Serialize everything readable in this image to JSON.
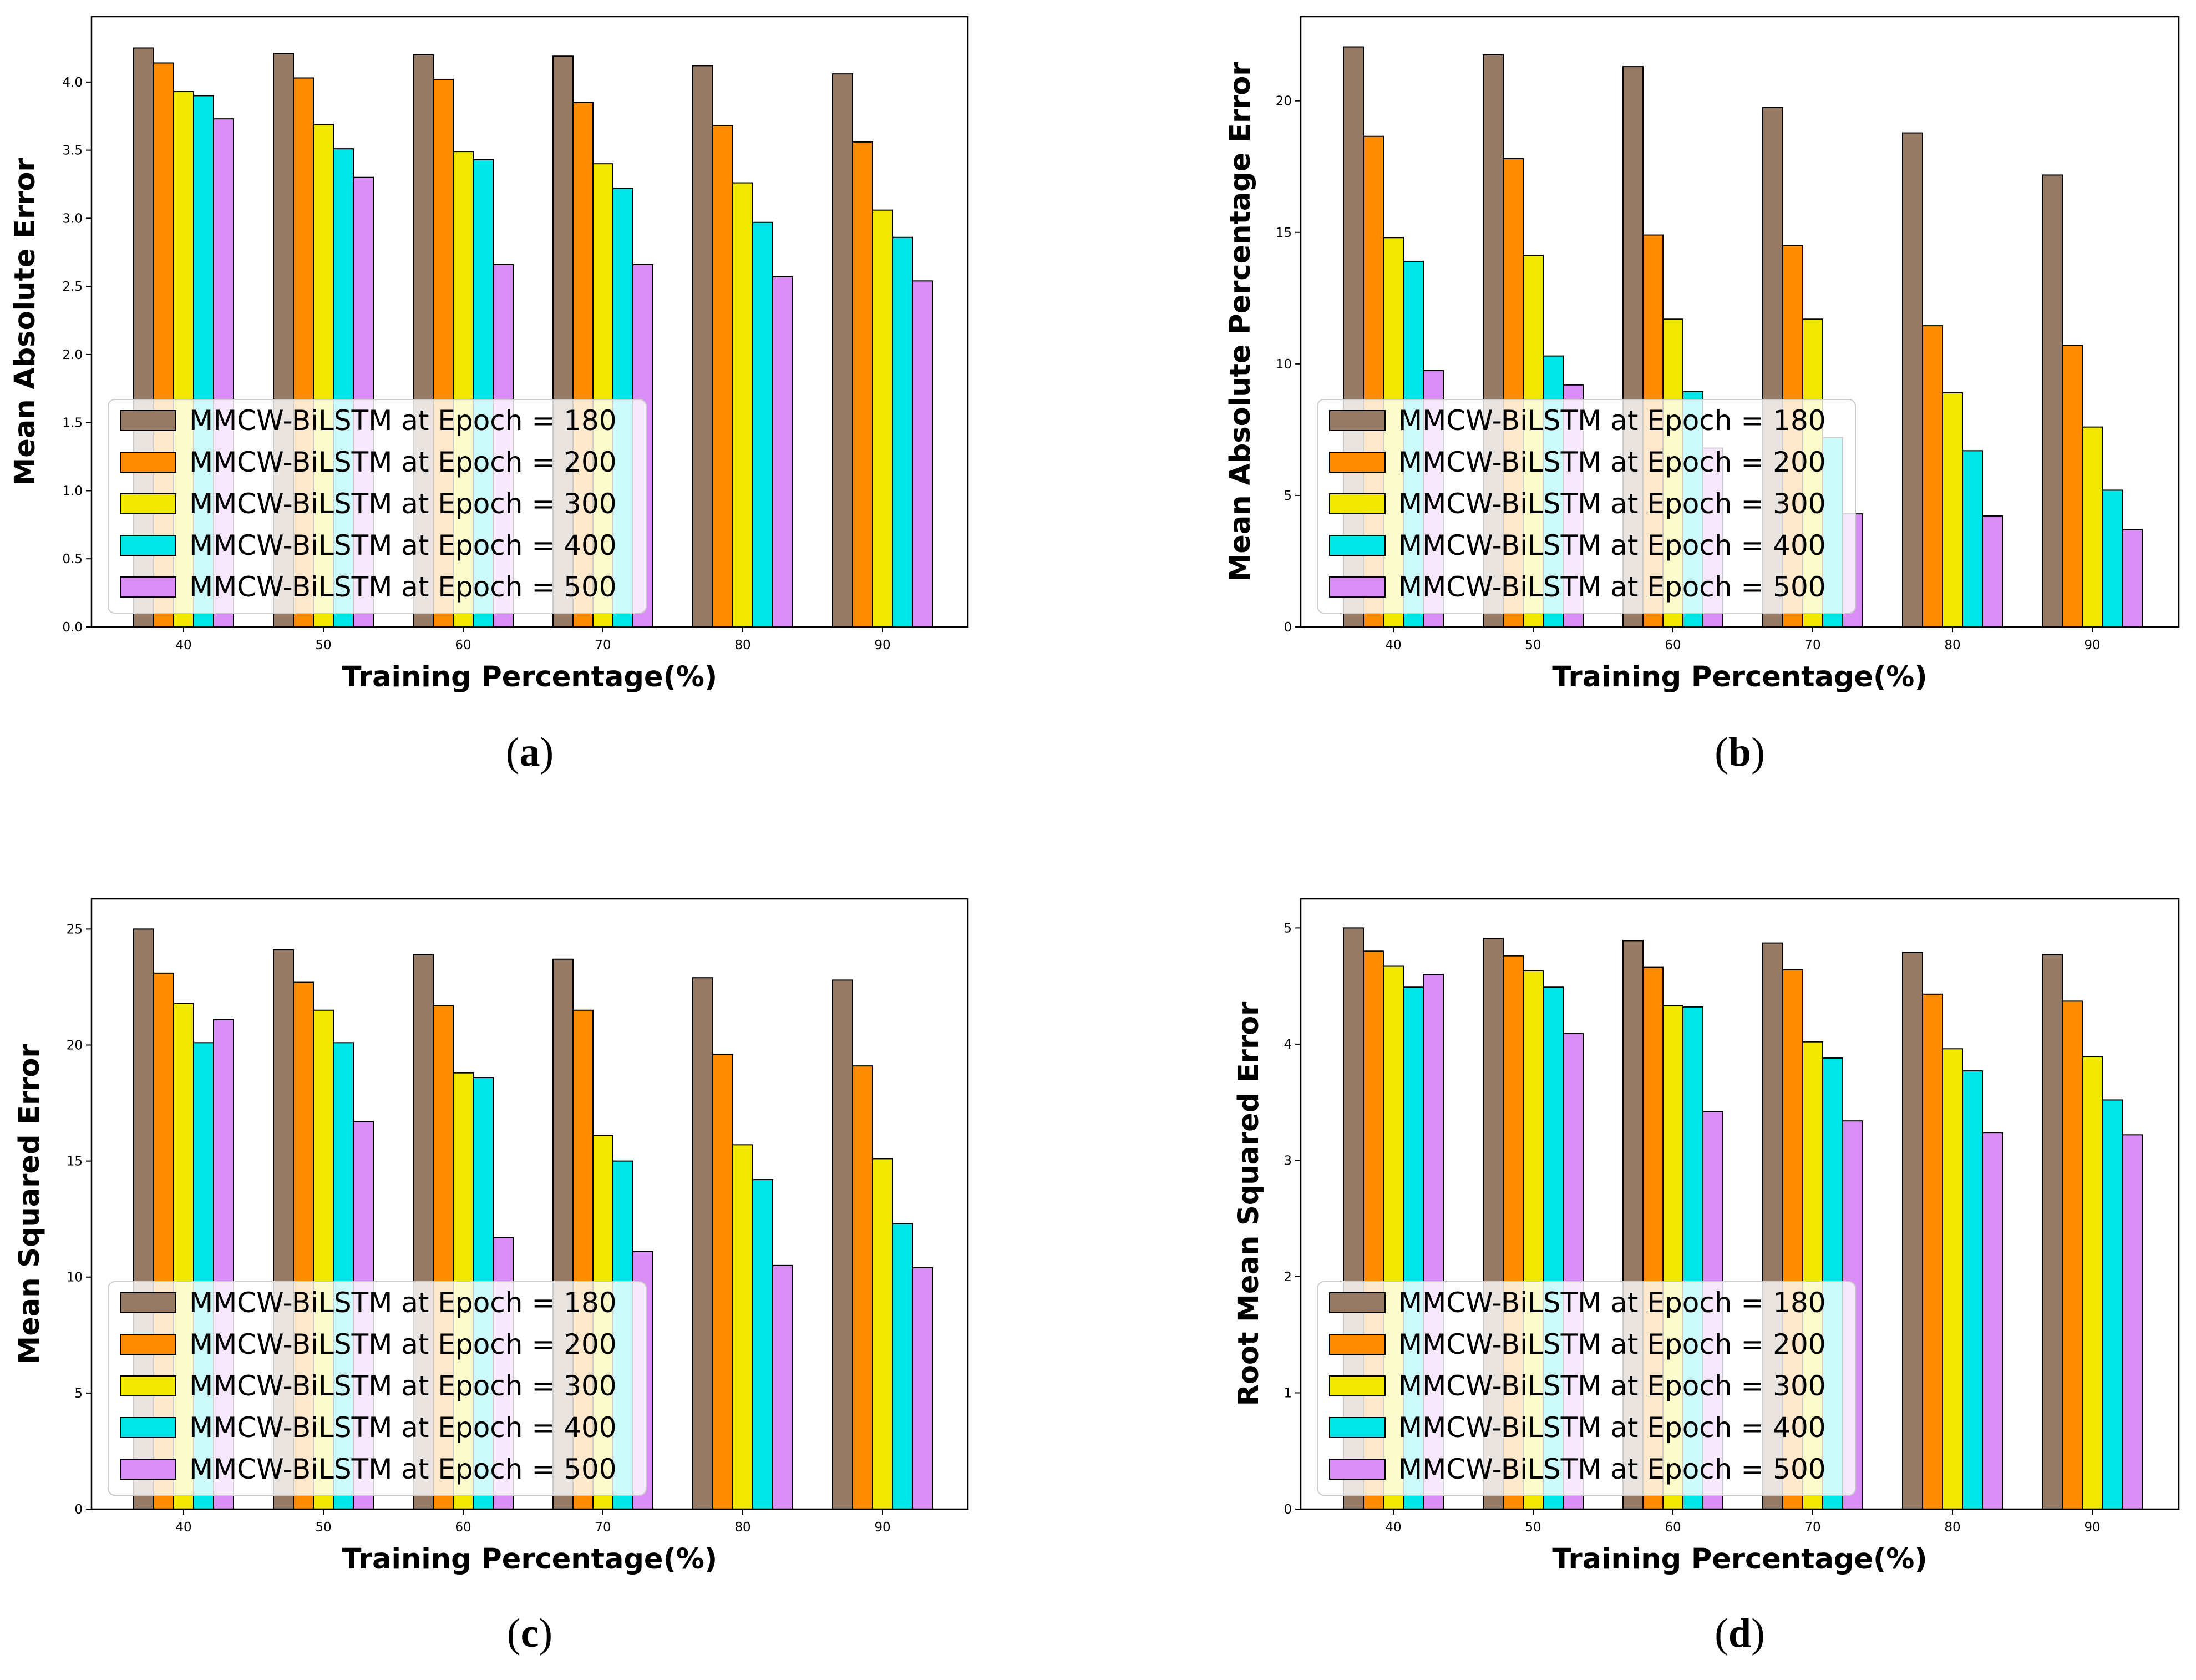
{
  "chart_data": [
    {
      "type": "bar",
      "caption": "a",
      "categories": [
        "40",
        "50",
        "60",
        "70",
        "80",
        "90"
      ],
      "series": [
        {
          "name": "MMCW-BiLSTM at Epoch = 180",
          "values": [
            4.25,
            4.21,
            4.2,
            4.19,
            4.12,
            4.06
          ]
        },
        {
          "name": "MMCW-BiLSTM at Epoch = 200",
          "values": [
            4.14,
            4.03,
            4.02,
            3.85,
            3.68,
            3.56
          ]
        },
        {
          "name": "MMCW-BiLSTM at Epoch = 300",
          "values": [
            3.93,
            3.69,
            3.49,
            3.4,
            3.26,
            3.06
          ]
        },
        {
          "name": "MMCW-BiLSTM at Epoch = 400",
          "values": [
            3.9,
            3.51,
            3.43,
            3.22,
            2.97,
            2.86
          ]
        },
        {
          "name": "MMCW-BiLSTM at Epoch = 500",
          "values": [
            3.73,
            3.3,
            2.66,
            2.66,
            2.57,
            2.54
          ]
        }
      ],
      "xlabel": "Training Percentage(%)",
      "ylabel": "Mean Absolute Error",
      "ylim": [
        0,
        4.48
      ],
      "yticks": [
        "0.0",
        "0.5",
        "1.0",
        "1.5",
        "2.0",
        "2.5",
        "3.0",
        "3.5",
        "4.0"
      ],
      "legend": "lower-left",
      "grid": false
    },
    {
      "type": "bar",
      "caption": "b",
      "categories": [
        "40",
        "50",
        "60",
        "70",
        "80",
        "90"
      ],
      "series": [
        {
          "name": "MMCW-BiLSTM at Epoch = 180",
          "values": [
            22.05,
            21.75,
            21.3,
            19.75,
            18.78,
            17.18
          ]
        },
        {
          "name": "MMCW-BiLSTM at Epoch = 200",
          "values": [
            18.65,
            17.8,
            14.9,
            14.5,
            11.45,
            10.7
          ]
        },
        {
          "name": "MMCW-BiLSTM at Epoch = 300",
          "values": [
            14.8,
            14.12,
            11.7,
            11.7,
            8.9,
            7.6
          ]
        },
        {
          "name": "MMCW-BiLSTM at Epoch = 400",
          "values": [
            13.9,
            10.3,
            8.95,
            7.2,
            6.7,
            5.2
          ]
        },
        {
          "name": "MMCW-BiLSTM at Epoch = 500",
          "values": [
            9.75,
            9.2,
            6.8,
            4.3,
            4.22,
            3.7
          ]
        }
      ],
      "xlabel": "Training Percentage(%)",
      "ylabel": "Mean Absolute Percentage Error",
      "ylim": [
        0,
        23.2
      ],
      "yticks": [
        "0",
        "5",
        "10",
        "15",
        "20"
      ],
      "legend": "lower-left",
      "grid": false
    },
    {
      "type": "bar",
      "caption": "c",
      "categories": [
        "40",
        "50",
        "60",
        "70",
        "80",
        "90"
      ],
      "series": [
        {
          "name": "MMCW-BiLSTM at Epoch = 180",
          "values": [
            25.0,
            24.1,
            23.9,
            23.7,
            22.9,
            22.8
          ]
        },
        {
          "name": "MMCW-BiLSTM at Epoch = 200",
          "values": [
            23.1,
            22.7,
            21.7,
            21.5,
            19.6,
            19.1
          ]
        },
        {
          "name": "MMCW-BiLSTM at Epoch = 300",
          "values": [
            21.8,
            21.5,
            18.8,
            16.1,
            15.7,
            15.1
          ]
        },
        {
          "name": "MMCW-BiLSTM at Epoch = 400",
          "values": [
            20.1,
            20.1,
            18.6,
            15.0,
            14.2,
            12.3
          ]
        },
        {
          "name": "MMCW-BiLSTM at Epoch = 500",
          "values": [
            21.1,
            16.7,
            11.7,
            11.1,
            10.5,
            10.4
          ]
        }
      ],
      "xlabel": "Training Percentage(%)",
      "ylabel": "Mean Squared Error",
      "ylim": [
        0,
        26.3
      ],
      "yticks": [
        "0",
        "5",
        "10",
        "15",
        "20",
        "25"
      ],
      "legend": "lower-left",
      "grid": false
    },
    {
      "type": "bar",
      "caption": "d",
      "categories": [
        "40",
        "50",
        "60",
        "70",
        "80",
        "90"
      ],
      "series": [
        {
          "name": "MMCW-BiLSTM at Epoch = 180",
          "values": [
            5.0,
            4.91,
            4.89,
            4.87,
            4.79,
            4.77
          ]
        },
        {
          "name": "MMCW-BiLSTM at Epoch = 200",
          "values": [
            4.8,
            4.76,
            4.66,
            4.64,
            4.43,
            4.37
          ]
        },
        {
          "name": "MMCW-BiLSTM at Epoch = 300",
          "values": [
            4.67,
            4.63,
            4.33,
            4.02,
            3.96,
            3.89
          ]
        },
        {
          "name": "MMCW-BiLSTM at Epoch = 400",
          "values": [
            4.49,
            4.49,
            4.32,
            3.88,
            3.77,
            3.52
          ]
        },
        {
          "name": "MMCW-BiLSTM at Epoch = 500",
          "values": [
            4.6,
            4.09,
            3.42,
            3.34,
            3.24,
            3.22
          ]
        }
      ],
      "xlabel": "Training Percentage(%)",
      "ylabel": "Root Mean Squared Error",
      "ylim": [
        0,
        5.25
      ],
      "yticks": [
        "0",
        "1",
        "2",
        "3",
        "4",
        "5"
      ],
      "legend": "lower-left",
      "grid": false
    }
  ],
  "colors": {
    "series": [
      "#957a66",
      "#ff8c00",
      "#f0e800",
      "#00e6e6",
      "#d98ef5"
    ],
    "edge": "#000000",
    "background": "#ffffff"
  }
}
